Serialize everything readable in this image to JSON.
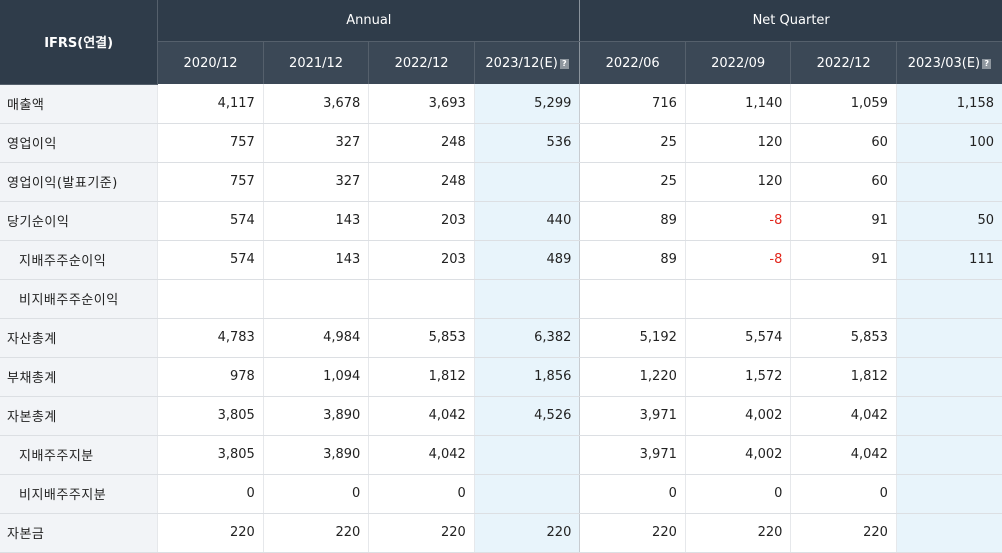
{
  "corner_label": "IFRS(연결)",
  "groups": {
    "annual": "Annual",
    "quarter": "Net Quarter"
  },
  "periods": {
    "annual": [
      "2020/12",
      "2021/12",
      "2022/12",
      "2023/12(E)"
    ],
    "quarter": [
      "2022/06",
      "2022/09",
      "2022/12",
      "2023/03(E)"
    ]
  },
  "help_icon": "question-mark-icon",
  "colors": {
    "header_bg": "#2f3c4a",
    "estimate_bg": "#e8f4fb",
    "negative": "#e2271d"
  },
  "rows": [
    {
      "label": "매출액",
      "annual": [
        "4,117",
        "3,678",
        "3,693",
        "5,299"
      ],
      "quarter": [
        "716",
        "1,140",
        "1,059",
        "1,158"
      ]
    },
    {
      "label": "영업이익",
      "annual": [
        "757",
        "327",
        "248",
        "536"
      ],
      "quarter": [
        "25",
        "120",
        "60",
        "100"
      ]
    },
    {
      "label": "영업이익(발표기준)",
      "annual": [
        "757",
        "327",
        "248",
        ""
      ],
      "quarter": [
        "25",
        "120",
        "60",
        ""
      ]
    },
    {
      "label": "당기순이익",
      "annual": [
        "574",
        "143",
        "203",
        "440"
      ],
      "quarter": [
        "89",
        "-8",
        "91",
        "50"
      ]
    },
    {
      "label": "지배주주순이익",
      "annual": [
        "574",
        "143",
        "203",
        "489"
      ],
      "quarter": [
        "89",
        "-8",
        "91",
        "111"
      ]
    },
    {
      "label": "비지배주주순이익",
      "annual": [
        "",
        "",
        "",
        ""
      ],
      "quarter": [
        "",
        "",
        "",
        ""
      ]
    },
    {
      "label": "자산총계",
      "annual": [
        "4,783",
        "4,984",
        "5,853",
        "6,382"
      ],
      "quarter": [
        "5,192",
        "5,574",
        "5,853",
        ""
      ]
    },
    {
      "label": "부채총계",
      "annual": [
        "978",
        "1,094",
        "1,812",
        "1,856"
      ],
      "quarter": [
        "1,220",
        "1,572",
        "1,812",
        ""
      ]
    },
    {
      "label": "자본총계",
      "annual": [
        "3,805",
        "3,890",
        "4,042",
        "4,526"
      ],
      "quarter": [
        "3,971",
        "4,002",
        "4,042",
        ""
      ]
    },
    {
      "label": "지배주주지분",
      "annual": [
        "3,805",
        "3,890",
        "4,042",
        ""
      ],
      "quarter": [
        "3,971",
        "4,002",
        "4,042",
        ""
      ]
    },
    {
      "label": "비지배주주지분",
      "annual": [
        "0",
        "0",
        "0",
        ""
      ],
      "quarter": [
        "0",
        "0",
        "0",
        ""
      ]
    },
    {
      "label": "자본금",
      "annual": [
        "220",
        "220",
        "220",
        "220"
      ],
      "quarter": [
        "220",
        "220",
        "220",
        ""
      ]
    }
  ]
}
